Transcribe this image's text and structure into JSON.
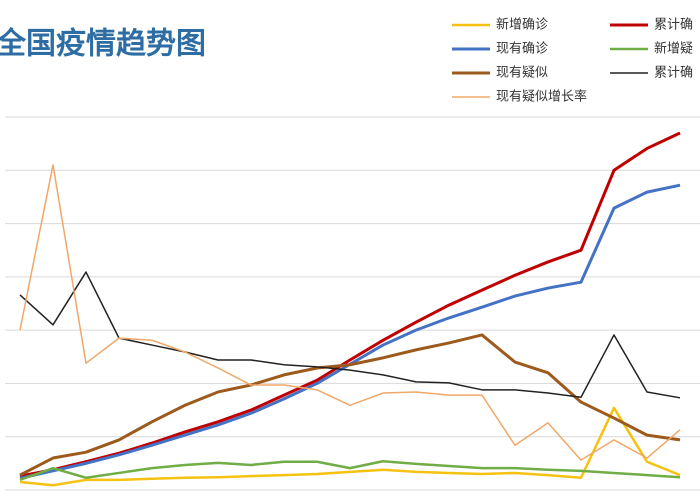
{
  "chart_data": {
    "type": "line",
    "title": "全国疫情趋势图",
    "categories": [
      null,
      null,
      null,
      null,
      null,
      null,
      null,
      null,
      null,
      null,
      null,
      null,
      null,
      null,
      null,
      null,
      null,
      null,
      null,
      null,
      null
    ],
    "series": [
      {
        "name": "新增确诊",
        "color": "#f5c211",
        "values": [
          0.15,
          0.09,
          0.19,
          0.19,
          0.21,
          0.23,
          0.24,
          0.26,
          0.28,
          0.3,
          0.34,
          0.38,
          0.34,
          0.32,
          0.3,
          0.32,
          0.28,
          0.23,
          1.54,
          0.53,
          0.28
        ]
      },
      {
        "name": "累计确",
        "color": "#c00000",
        "values": [
          0.26,
          0.38,
          0.53,
          0.69,
          0.88,
          1.09,
          1.28,
          1.5,
          1.78,
          2.06,
          2.44,
          2.81,
          3.15,
          3.47,
          3.75,
          4.03,
          4.28,
          4.5,
          6.0,
          6.41,
          6.7
        ]
      },
      {
        "name": "现有确诊",
        "color": "#4472c4",
        "values": [
          0.22,
          0.36,
          0.5,
          0.66,
          0.84,
          1.03,
          1.22,
          1.44,
          1.71,
          2.0,
          2.36,
          2.72,
          3.0,
          3.23,
          3.43,
          3.64,
          3.79,
          3.9,
          5.29,
          5.59,
          5.72
        ]
      },
      {
        "name": "新增疑",
        "color": "#70ad47",
        "values": [
          0.19,
          0.41,
          0.23,
          0.32,
          0.41,
          0.47,
          0.51,
          0.47,
          0.53,
          0.53,
          0.41,
          0.54,
          0.49,
          0.45,
          0.41,
          0.41,
          0.38,
          0.36,
          0.32,
          0.28,
          0.24
        ]
      },
      {
        "name": "现有疑似",
        "color": "#9c5a1c",
        "values": [
          0.28,
          0.6,
          0.71,
          0.94,
          1.28,
          1.59,
          1.84,
          1.97,
          2.16,
          2.29,
          2.35,
          2.48,
          2.63,
          2.76,
          2.91,
          2.4,
          2.2,
          1.65,
          1.35,
          1.03,
          0.94
        ]
      },
      {
        "name": "累计确",
        "color": "#222222",
        "values": [
          3.66,
          3.1,
          4.09,
          2.85,
          2.72,
          2.59,
          2.44,
          2.44,
          2.35,
          2.31,
          2.25,
          2.16,
          2.03,
          2.01,
          1.88,
          1.88,
          1.82,
          1.74,
          2.91,
          1.84,
          1.73
        ]
      },
      {
        "name": "现有疑似增长率",
        "color": "#f0a868",
        "values": [
          3.0,
          6.1,
          2.38,
          2.85,
          2.81,
          2.59,
          2.29,
          1.97,
          1.97,
          1.88,
          1.59,
          1.82,
          1.84,
          1.78,
          1.78,
          0.84,
          1.26,
          0.56,
          0.94,
          0.6,
          1.13
        ]
      }
    ],
    "ylim": [
      0,
      7
    ],
    "yticks": [
      0,
      1,
      2,
      3,
      4,
      5,
      6,
      7
    ],
    "grid": true
  }
}
